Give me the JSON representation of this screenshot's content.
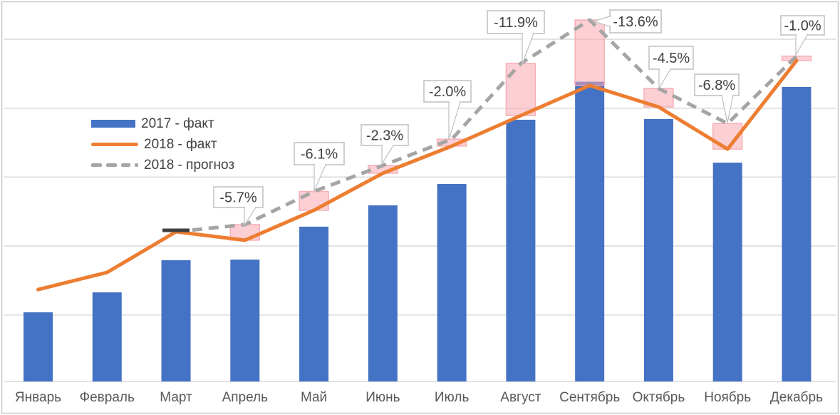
{
  "chart_data": {
    "type": "combo",
    "categories": [
      "Январь",
      "Февраль",
      "Март",
      "Апрель",
      "Май",
      "Июнь",
      "Июль",
      "Август",
      "Сентябрь",
      "Октябрь",
      "Ноябрь",
      "Декабрь"
    ],
    "series": [
      {
        "name": "2017 - факт",
        "type": "bar",
        "color": "#4472C4",
        "values": [
          100,
          110.6,
          127.7,
          128.0,
          145.5,
          156.8,
          168.2,
          202.3,
          222.5,
          202.7,
          179.5,
          219.7
        ]
      },
      {
        "name": "2018 - факт",
        "type": "line",
        "color": "#ED7D31",
        "values": [
          112.1,
          121.2,
          142.8,
          138.3,
          154.2,
          173.9,
          188.3,
          204.5,
          220.5,
          209.1,
          186.7,
          233.7
        ]
      },
      {
        "name": "2018 - прогноз",
        "type": "line-dashed",
        "color": "#A5A5A5",
        "values": [
          null,
          null,
          142.8,
          146.6,
          164.2,
          178.0,
          192.0,
          232.2,
          255.3,
          218.9,
          200.3,
          236.1
        ]
      }
    ],
    "annotations": [
      {
        "category": "Апрель",
        "text": "-5.7%"
      },
      {
        "category": "Май",
        "text": "-6.1%"
      },
      {
        "category": "Июнь",
        "text": "-2.3%"
      },
      {
        "category": "Июль",
        "text": "-2.0%"
      },
      {
        "category": "Август",
        "text": "-11.9%"
      },
      {
        "category": "Сентябрь",
        "text": "-13.6%"
      },
      {
        "category": "Октябрь",
        "text": "-4.5%"
      },
      {
        "category": "Ноябрь",
        "text": "-6.8%"
      },
      {
        "category": "Декабрь",
        "text": "-1.0%"
      }
    ],
    "y_axis": {
      "visible": false,
      "range_approx": [
        63,
        265
      ]
    },
    "grid": "horizontal",
    "legend_position": "inside-top-left",
    "colors": {
      "bar": "#4472C4",
      "actual_line": "#ED7D31",
      "forecast_line": "#A5A5A5",
      "forecast_start_dash": "#404040",
      "deviation_fill": "#F7A8B0",
      "callout_border": "#BFBFBF",
      "text": "#404040",
      "axis_text": "#595959",
      "gridline": "#D9D9D9",
      "chart_border": "#C9C9C9"
    }
  }
}
